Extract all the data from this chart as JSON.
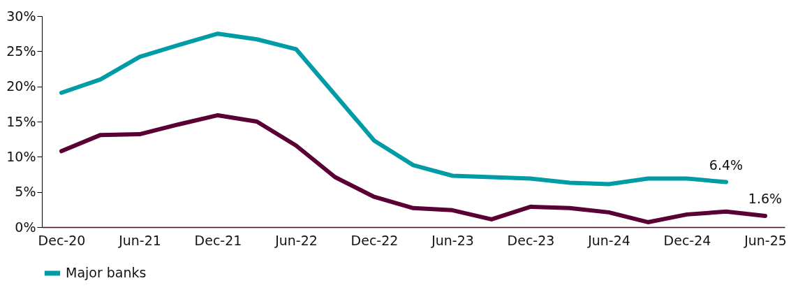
{
  "chart_data": {
    "type": "line",
    "categories": [
      "Dec-20",
      null,
      "Jun-21",
      null,
      "Dec-21",
      null,
      "Jun-22",
      null,
      "Dec-22",
      null,
      "Jun-23",
      null,
      "Dec-23",
      null,
      "Jun-24",
      null,
      "Dec-24",
      null,
      "Jun-25"
    ],
    "series": [
      {
        "color": "#5a0035",
        "values": [
          10.8,
          13.1,
          13.2,
          14.6,
          15.9,
          15.0,
          11.6,
          7.1,
          4.3,
          2.7,
          2.4,
          1.1,
          2.9,
          2.7,
          2.1,
          0.7,
          1.8,
          2.2,
          1.6
        ],
        "value_labels": [
          null,
          null,
          null,
          null,
          null,
          null,
          null,
          null,
          null,
          null,
          null,
          null,
          null,
          null,
          null,
          null,
          null,
          null,
          "1.6%"
        ]
      },
      {
        "name": "Major banks",
        "color": "#009ca6",
        "values": [
          19.1,
          21.0,
          24.2,
          25.9,
          27.5,
          26.7,
          25.3,
          18.8,
          12.3,
          8.8,
          7.3,
          7.1,
          6.9,
          6.3,
          6.1,
          6.9,
          6.9,
          6.4,
          null
        ],
        "value_labels": [
          null,
          null,
          null,
          null,
          null,
          null,
          null,
          null,
          null,
          null,
          null,
          null,
          null,
          null,
          null,
          null,
          null,
          "6.4%",
          null
        ]
      }
    ],
    "ylim": [
      0,
      30
    ],
    "yticks": [
      {
        "value": 0,
        "label": "0%"
      },
      {
        "value": 5,
        "label": "5%"
      },
      {
        "value": 10,
        "label": "10%"
      },
      {
        "value": 15,
        "label": "15%"
      },
      {
        "value": 20,
        "label": "20%"
      },
      {
        "value": 25,
        "label": "25%"
      },
      {
        "value": 30,
        "label": "30%"
      }
    ],
    "grid": false,
    "legend": "bottom"
  }
}
